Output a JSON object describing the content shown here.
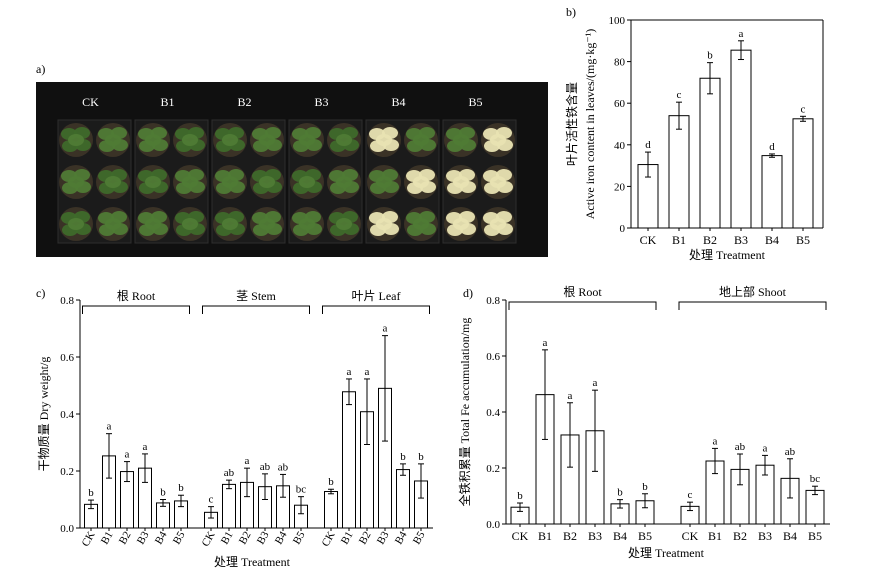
{
  "panel_labels": {
    "a": "a)",
    "b": "b)",
    "c": "c)",
    "d": "d)"
  },
  "photo": {
    "labels": [
      "CK",
      "B1",
      "B2",
      "B3",
      "B4",
      "B5"
    ],
    "colors": {
      "background": "#101010",
      "tray": "#1b1b1b",
      "pot": "#3a3226",
      "leaf": "#4f7b35",
      "leaf_dark": "#3e6a2a",
      "chlorotic": "#e8e3b2"
    }
  },
  "chart_data": [
    {
      "panel": "b",
      "type": "bar",
      "categories": [
        "CK",
        "B1",
        "B2",
        "B3",
        "B4",
        "B5"
      ],
      "values": [
        30.5,
        54,
        72,
        85.5,
        34.8,
        52.5
      ],
      "errors": [
        6,
        6.5,
        7.5,
        4.5,
        0.8,
        1.2
      ],
      "letters": [
        "d",
        "c",
        "b",
        "a",
        "d",
        "c"
      ],
      "ylabel_cn": "叶片活性铁含量",
      "ylabel_en": "Active iron content in leaves/(mg·kg⁻¹)",
      "xlabel": "处理 Treatment",
      "ylim": [
        0,
        100
      ],
      "yticks": [
        0,
        20,
        40,
        60,
        80,
        100
      ]
    },
    {
      "panel": "c",
      "type": "bar",
      "groups": [
        {
          "label": "根 Root",
          "categories": [
            "CK",
            "B1",
            "B2",
            "B3",
            "B4",
            "B5"
          ],
          "values": [
            0.083,
            0.253,
            0.198,
            0.21,
            0.088,
            0.095
          ],
          "errors": [
            0.015,
            0.078,
            0.035,
            0.05,
            0.012,
            0.02
          ],
          "letters": [
            "b",
            "a",
            "a",
            "a",
            "b",
            "b"
          ]
        },
        {
          "label": "茎 Stem",
          "categories": [
            "CK",
            "B1",
            "B2",
            "B3",
            "B4",
            "B5"
          ],
          "values": [
            0.055,
            0.153,
            0.16,
            0.145,
            0.148,
            0.08
          ],
          "errors": [
            0.02,
            0.015,
            0.05,
            0.045,
            0.04,
            0.03
          ],
          "letters": [
            "c",
            "ab",
            "a",
            "ab",
            "ab",
            "bc"
          ]
        },
        {
          "label": "叶片 Leaf",
          "categories": [
            "CK",
            "B1",
            "B2",
            "B3",
            "B4",
            "B5"
          ],
          "values": [
            0.128,
            0.478,
            0.408,
            0.49,
            0.205,
            0.165
          ],
          "errors": [
            0.008,
            0.045,
            0.115,
            0.185,
            0.02,
            0.06
          ],
          "letters": [
            "b",
            "a",
            "a",
            "a",
            "b",
            "b"
          ]
        }
      ],
      "ylabel": "干物质量 Dry weight/g",
      "xlabel": "处理 Treatment",
      "ylim": [
        0,
        0.8
      ],
      "yticks": [
        "0.0",
        "0.2",
        "0.4",
        "0.6",
        "0.8"
      ]
    },
    {
      "panel": "d",
      "type": "bar",
      "groups": [
        {
          "label": "根 Root",
          "categories": [
            "CK",
            "B1",
            "B2",
            "B3",
            "B4",
            "B5"
          ],
          "values": [
            0.06,
            0.462,
            0.318,
            0.333,
            0.072,
            0.083
          ],
          "errors": [
            0.015,
            0.16,
            0.115,
            0.145,
            0.015,
            0.025
          ],
          "letters": [
            "b",
            "a",
            "a",
            "a",
            "b",
            "b"
          ]
        },
        {
          "label": "地上部 Shoot",
          "categories": [
            "CK",
            "B1",
            "B2",
            "B3",
            "B4",
            "B5"
          ],
          "values": [
            0.063,
            0.225,
            0.195,
            0.21,
            0.163,
            0.12
          ],
          "errors": [
            0.015,
            0.045,
            0.055,
            0.035,
            0.07,
            0.015
          ],
          "letters": [
            "c",
            "a",
            "ab",
            "a",
            "ab",
            "bc"
          ]
        }
      ],
      "ylabel": "全铁积累量 Total Fe accumulation/mg",
      "xlabel": "处理 Treatment",
      "ylim": [
        0,
        0.8
      ],
      "yticks": [
        "0.0",
        "0.2",
        "0.4",
        "0.6",
        "0.8"
      ]
    }
  ]
}
